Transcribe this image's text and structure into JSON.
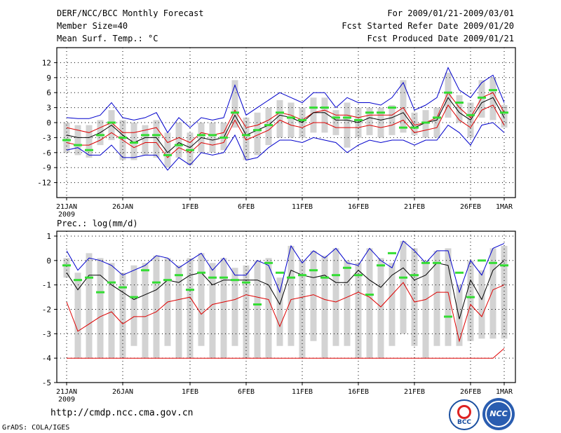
{
  "header": {
    "title": "DERF/NCC/BCC Monthly Forecast",
    "member_size": "Member Size=40",
    "variable": "Mean Surf. Temp.: °C",
    "period": "For 2009/01/21-2009/03/01",
    "start_date": "Fcst Started Refer Date 2009/01/20",
    "produced_date": "Fcst Produced Date 2009/01/21"
  },
  "footer": {
    "url": "http://cmdp.ncc.cma.gov.cn",
    "grads": "GrADS: COLA/IGES",
    "logo_bcc": "BCC",
    "logo_ncc": "NCC"
  },
  "colors": {
    "max": "#0000cc",
    "min": "#0000cc",
    "q": "#dd0000",
    "mean": "#000000",
    "median": "#33dd33",
    "box": "#d3d3d3"
  },
  "chart_data": [
    {
      "type": "box-line",
      "title": "Mean Surf. Temp.: °C",
      "ylim": [
        -15,
        15
      ],
      "yticks": [
        12,
        9,
        6,
        3,
        0,
        -3,
        -6,
        -9,
        -12
      ],
      "xtick_labels": [
        {
          "day": 0,
          "label": "21JAN",
          "sub": "2009"
        },
        {
          "day": 5,
          "label": "26JAN"
        },
        {
          "day": 11,
          "label": "1FEB"
        },
        {
          "day": 16,
          "label": "6FEB"
        },
        {
          "day": 21,
          "label": "11FEB"
        },
        {
          "day": 26,
          "label": "16FEB"
        },
        {
          "day": 31,
          "label": "21FEB"
        },
        {
          "day": 36,
          "label": "26FEB"
        },
        {
          "day": 39,
          "label": "1MAR"
        }
      ],
      "days": 40,
      "series": {
        "max": [
          1,
          0.8,
          0.8,
          1.5,
          4,
          1,
          0.5,
          1,
          2,
          -2,
          1,
          -1,
          1,
          0.5,
          1,
          7.5,
          1.5,
          3,
          4.5,
          6,
          5,
          4,
          6,
          6,
          3,
          5,
          4,
          4,
          3.5,
          5,
          8,
          2.5,
          3.5,
          5,
          11,
          6.5,
          5,
          8,
          9.5,
          4
        ],
        "q3": [
          -1,
          -1.5,
          -2,
          -1,
          0,
          -2,
          -2,
          -1.5,
          -1,
          -4,
          -3,
          -4,
          -2,
          -2.5,
          -2,
          2.5,
          -1,
          -0.5,
          0.5,
          2,
          1.5,
          0.5,
          2,
          2.5,
          1.5,
          1.5,
          1,
          1.5,
          1.5,
          1.5,
          3,
          -0.5,
          0,
          1,
          6,
          3,
          1,
          5,
          6,
          2
        ],
        "mean": [
          -2.5,
          -3,
          -3,
          -2,
          -0.5,
          -2.5,
          -4,
          -3,
          -3,
          -6,
          -4,
          -5,
          -3,
          -3.5,
          -3,
          1.5,
          -2.5,
          -1.5,
          -0.5,
          1.5,
          1,
          0,
          2,
          2,
          0.5,
          0.5,
          0,
          1,
          0.5,
          1,
          2,
          -1,
          0,
          0.5,
          5,
          2,
          0.5,
          4,
          5,
          1
        ],
        "q1": [
          -4,
          -4.5,
          -4.5,
          -3.5,
          -2,
          -3.5,
          -5,
          -4,
          -4,
          -7,
          -5,
          -6,
          -4,
          -4.5,
          -4,
          0.5,
          -3.5,
          -2.5,
          -1.5,
          0.5,
          -0.5,
          -1,
          0,
          0,
          -1,
          -1,
          -1,
          -0.5,
          -1,
          -0.5,
          0.5,
          -2,
          -1.5,
          -1,
          3.5,
          0.5,
          -1,
          2.5,
          3.5,
          -0.5
        ],
        "min": [
          -5.5,
          -5,
          -6.5,
          -6.5,
          -4.5,
          -7,
          -7,
          -6.5,
          -6.5,
          -9.5,
          -7,
          -8.5,
          -6,
          -6.5,
          -6,
          -2.5,
          -7.5,
          -7,
          -5,
          -3.5,
          -3.5,
          -4,
          -3,
          -3.5,
          -4,
          -6,
          -4.5,
          -3.5,
          -4,
          -3.5,
          -3.5,
          -4.5,
          -3.5,
          -3.5,
          -0.5,
          -2,
          -4.5,
          -0.5,
          0,
          -2
        ],
        "median": [
          -3.5,
          -4.5,
          -5.5,
          -2.5,
          0,
          -3,
          -4,
          -2.5,
          -2.5,
          -6.5,
          -4.5,
          -5.5,
          -2.5,
          -2.5,
          -3,
          2,
          -2.5,
          -1.5,
          -0.5,
          2,
          1,
          0.5,
          3,
          3,
          1,
          1,
          0.5,
          2,
          2,
          3,
          -1,
          -1,
          0,
          1,
          6,
          4,
          1.5,
          5,
          6.5,
          2
        ],
        "box_lo": [
          -6,
          -6.5,
          -7,
          -4.5,
          -3.5,
          -7.5,
          -7.5,
          -6.5,
          -7,
          -9,
          -7,
          -8.5,
          -6,
          -6,
          -5.5,
          -1,
          -7.5,
          -6.5,
          -4.5,
          -3,
          -3,
          -3,
          -2,
          -2,
          -2.5,
          -5,
          -3,
          -2.5,
          -3,
          -2.5,
          -2,
          -2.5,
          -3,
          -3,
          1,
          0,
          -3,
          1,
          0.5,
          -1
        ],
        "box_hi": [
          0,
          -0.5,
          -0.5,
          0.5,
          2.5,
          0.5,
          0,
          -0.5,
          0.5,
          -2,
          0,
          -2,
          0,
          0,
          0,
          8.5,
          1,
          2,
          3,
          4.5,
          4,
          3,
          5,
          5,
          2.5,
          4,
          3,
          3,
          3,
          3.5,
          8.5,
          2,
          2.5,
          3,
          10,
          5.5,
          4,
          8.5,
          9,
          3.5
        ]
      }
    },
    {
      "type": "box-line",
      "title": "Prec.: log(mm/d)",
      "ylim": [
        -5,
        1.2
      ],
      "yticks": [
        1,
        0,
        -1,
        -2,
        -3,
        -4,
        -5
      ],
      "xtick_labels": [
        {
          "day": 0,
          "label": "21JAN",
          "sub": "2009"
        },
        {
          "day": 5,
          "label": "26JAN"
        },
        {
          "day": 11,
          "label": "1FEB"
        },
        {
          "day": 16,
          "label": "6FEB"
        },
        {
          "day": 21,
          "label": "11FEB"
        },
        {
          "day": 26,
          "label": "16FEB"
        },
        {
          "day": 31,
          "label": "21FEB"
        },
        {
          "day": 36,
          "label": "26FEB"
        },
        {
          "day": 39,
          "label": "1MAR"
        }
      ],
      "days": 40,
      "series": {
        "max": [
          0.4,
          -0.4,
          0.1,
          0,
          -0.2,
          -0.6,
          -0.4,
          -0.2,
          0.2,
          0.1,
          -0.3,
          0,
          0.3,
          -0.4,
          0.1,
          -0.6,
          -0.6,
          0,
          -0.2,
          -1.3,
          0.6,
          -0.1,
          0.4,
          0.1,
          0.5,
          -0.1,
          -0.2,
          0.5,
          0,
          -0.3,
          0.8,
          0.4,
          -0.1,
          0.4,
          0.4,
          -1.3,
          0,
          -0.6,
          0.5,
          0.7
        ],
        "mean": [
          -0.5,
          -1.2,
          -0.6,
          -0.6,
          -1,
          -1.3,
          -1.6,
          -1.4,
          -1.2,
          -0.8,
          -0.9,
          -0.6,
          -0.5,
          -1,
          -0.8,
          -0.8,
          -0.8,
          -0.8,
          -1,
          -1.8,
          -0.4,
          -0.6,
          -0.7,
          -0.6,
          -0.9,
          -0.9,
          -0.4,
          -0.8,
          -1.1,
          -0.6,
          -0.3,
          -0.8,
          -0.6,
          -0.1,
          -0.2,
          -2.4,
          -0.8,
          -1.6,
          -0.4,
          0
        ],
        "q1": [
          -1.7,
          -2.9,
          -2.6,
          -2.3,
          -2.1,
          -2.6,
          -2.3,
          -2.3,
          -2.1,
          -1.7,
          -1.6,
          -1.5,
          -2.2,
          -1.8,
          -1.7,
          -1.6,
          -1.4,
          -1.5,
          -1.6,
          -2.7,
          -1.6,
          -1.5,
          -1.4,
          -1.6,
          -1.7,
          -1.5,
          -1.3,
          -1.5,
          -1.9,
          -1.4,
          -0.9,
          -1.7,
          -1.6,
          -1.3,
          -1.3,
          -3.3,
          -1.8,
          -2.3,
          -1.2,
          -1
        ],
        "zero": [
          -4,
          -4,
          -4,
          -4,
          -4,
          -4,
          -4,
          -4,
          -4,
          -4,
          -4,
          -4,
          -4,
          -4,
          -4,
          -4,
          -4,
          -4,
          -4,
          -4,
          -4,
          -4,
          -4,
          -4,
          -4,
          -4,
          -4,
          -4,
          -4,
          -4,
          -4,
          -4,
          -4,
          -4,
          -4,
          -4,
          -4,
          -4,
          -4,
          -3.6
        ],
        "median": [
          -0.2,
          -0.8,
          -0.7,
          -1.3,
          -0.9,
          -1.1,
          -1.5,
          -0.4,
          -0.9,
          -0.8,
          -0.6,
          -1.2,
          -0.5,
          -0.7,
          -0.7,
          -0.8,
          -0.9,
          -1.8,
          -0.1,
          -0.5,
          -0.7,
          -0.6,
          -0.4,
          -0.7,
          -0.6,
          -0.3,
          -0.6,
          -1.4,
          -0.2,
          0.3,
          -0.7,
          -0.6,
          -0.1,
          -0.1,
          -2.3,
          -0.5,
          -1.5,
          0,
          -0.1,
          -0.2
        ],
        "box_lo": [
          -0.7,
          -4,
          -4,
          -4,
          -4,
          -4,
          -3.5,
          -4,
          -4,
          -3.5,
          -4,
          -4,
          -3.5,
          -4,
          -4,
          -3.5,
          -4,
          -4,
          -4,
          -3.5,
          -3.5,
          -4,
          -3.3,
          -4,
          -3.5,
          -3.5,
          -4,
          -4,
          -4,
          -3.5,
          -3,
          -3.5,
          -4,
          -3.5,
          -3.5,
          -3.5,
          -3.3,
          -3.2,
          -3.2,
          -3.2
        ],
        "box_hi": [
          0.1,
          -0.5,
          0.3,
          0.1,
          -0.1,
          -0.5,
          -0.2,
          -0.1,
          0.2,
          0.1,
          -0.2,
          0.1,
          0.3,
          -0.1,
          0.1,
          -0.3,
          -0.2,
          0,
          0.1,
          -0.7,
          0.6,
          0,
          0.4,
          0.2,
          0.5,
          0,
          -0.1,
          0.5,
          0.1,
          -0.1,
          0.8,
          0.5,
          0,
          0.4,
          0.5,
          -1,
          0,
          -0.4,
          0.5,
          0.6
        ]
      }
    }
  ]
}
